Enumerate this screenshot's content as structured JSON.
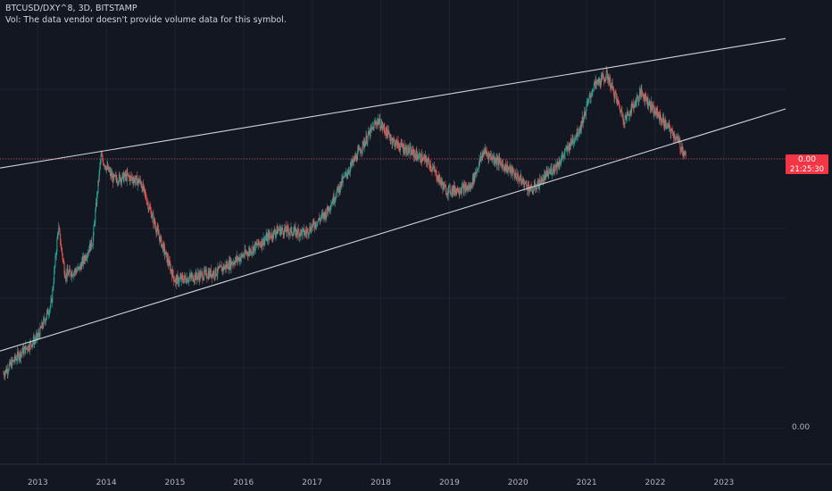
{
  "legend": {
    "symbol_line": "BTCUSD/DXY^8, 3D, BITSTAMP",
    "volume_note": "Vol: The data vendor doesn't provide volume data for this symbol."
  },
  "price_axis": {
    "last_price": "0.00",
    "countdown": "21:25:30",
    "bottom_label": "0.00"
  },
  "colors": {
    "background": "#131722",
    "grid": "#1f2330",
    "up": "#26a69a",
    "down": "#ef5350",
    "trendline": "#d1d4dc",
    "price_tag": "#f23645",
    "axis_text": "#b2b5be"
  },
  "chart_data": {
    "type": "candlestick",
    "symbol": "BTCUSD/DXY^8",
    "interval": "3D",
    "exchange": "BITSTAMP",
    "y_scale": "log",
    "grid": true,
    "legend": "none",
    "x_tick_labels": [
      "2013",
      "2014",
      "2015",
      "2016",
      "2017",
      "2018",
      "2019",
      "2020",
      "2021",
      "2022",
      "2023"
    ],
    "x_range": [
      2012.45,
      2023.9
    ],
    "y_range_relative": [
      0.0,
      1.0
    ],
    "price_path": [
      [
        2012.5,
        0.1
      ],
      [
        2012.7,
        0.16
      ],
      [
        2013.0,
        0.23
      ],
      [
        2013.2,
        0.35
      ],
      [
        2013.3,
        0.62
      ],
      [
        2013.4,
        0.45
      ],
      [
        2013.6,
        0.47
      ],
      [
        2013.8,
        0.57
      ],
      [
        2013.92,
        0.87
      ],
      [
        2014.1,
        0.79
      ],
      [
        2014.3,
        0.8
      ],
      [
        2014.5,
        0.78
      ],
      [
        2014.75,
        0.6
      ],
      [
        2015.0,
        0.43
      ],
      [
        2015.2,
        0.44
      ],
      [
        2015.6,
        0.46
      ],
      [
        2016.0,
        0.52
      ],
      [
        2016.5,
        0.61
      ],
      [
        2016.9,
        0.6
      ],
      [
        2017.2,
        0.67
      ],
      [
        2017.5,
        0.81
      ],
      [
        2017.95,
        1.0
      ],
      [
        2018.2,
        0.92
      ],
      [
        2018.7,
        0.85
      ],
      [
        2018.95,
        0.75
      ],
      [
        2019.3,
        0.76
      ],
      [
        2019.5,
        0.89
      ],
      [
        2019.9,
        0.82
      ],
      [
        2020.2,
        0.75
      ],
      [
        2020.6,
        0.85
      ],
      [
        2020.9,
        0.97
      ],
      [
        2021.1,
        1.12
      ],
      [
        2021.3,
        1.16
      ],
      [
        2021.55,
        1.0
      ],
      [
        2021.8,
        1.1
      ],
      [
        2022.0,
        1.03
      ],
      [
        2022.3,
        0.94
      ],
      [
        2022.45,
        0.87
      ]
    ],
    "trendlines": [
      {
        "name": "upper channel",
        "from": [
          2012.45,
          0.83
        ],
        "to": [
          2023.9,
          1.29
        ]
      },
      {
        "name": "lower channel",
        "from": [
          2012.45,
          0.18
        ],
        "to": [
          2023.9,
          1.04
        ]
      }
    ]
  }
}
